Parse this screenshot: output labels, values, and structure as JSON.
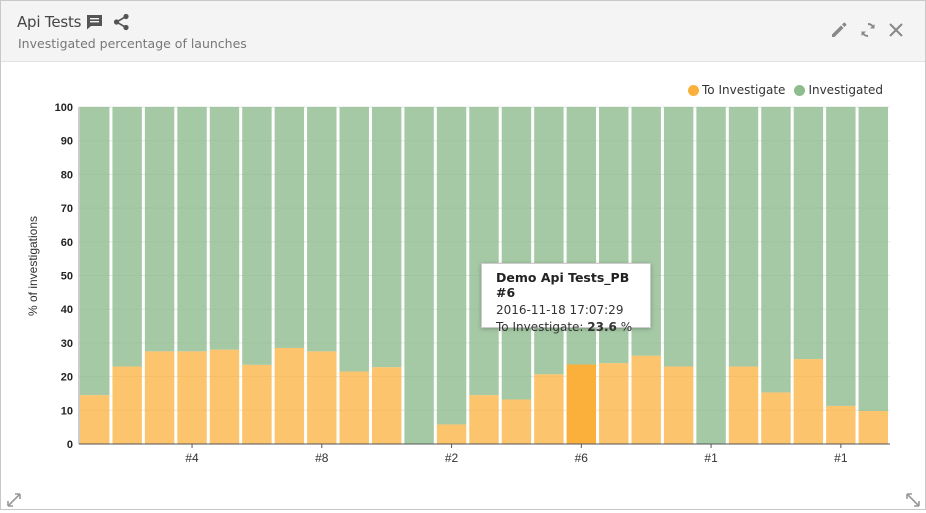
{
  "widget": {
    "title": "Api Tests",
    "subtitle": "Investigated percentage of launches",
    "icons": [
      "comment-icon",
      "share-icon",
      "edit-icon",
      "refresh-icon",
      "close-icon",
      "expand-icon",
      "resize-icon"
    ]
  },
  "legend": {
    "items": [
      {
        "label": "To Investigate",
        "color": "#fbb03b"
      },
      {
        "label": "Investigated",
        "color": "#8fbc8f"
      }
    ],
    "placement": "top-right"
  },
  "tooltip": {
    "title": "Demo Api Tests_PB #6",
    "date": "2016-11-18 17:07:29",
    "label": "To Investigate:",
    "value": "23.6",
    "unit": "%"
  },
  "chart_data": {
    "type": "bar",
    "stacked": true,
    "ylabel": "% of investigations",
    "xlabel": "",
    "ylim": [
      0,
      100
    ],
    "yticks": [
      0,
      10,
      20,
      30,
      40,
      50,
      60,
      70,
      80,
      90,
      100
    ],
    "x_tick_labels": [
      "#4",
      "#8",
      "#2",
      "#6",
      "#1",
      "#1"
    ],
    "grid": true,
    "highlighted_bar": 15,
    "series": [
      {
        "name": "To Investigate",
        "color": "#fbb03b",
        "values": [
          14.5,
          23,
          27.5,
          27.5,
          28,
          23.5,
          28.5,
          27.5,
          21.5,
          22.8,
          0,
          5.8,
          14.5,
          13.2,
          20.7,
          23.6,
          24,
          26.2,
          23,
          0,
          23,
          15.3,
          25.2,
          11.3,
          9.8
        ]
      },
      {
        "name": "Investigated",
        "color": "#8fbc8f",
        "values": [
          85.5,
          77,
          72.5,
          72.5,
          72,
          76.5,
          71.5,
          72.5,
          78.5,
          77.2,
          100,
          94.2,
          85.5,
          86.8,
          79.3,
          76.4,
          76,
          73.8,
          77,
          100,
          77,
          84.7,
          74.8,
          88.7,
          90.2
        ]
      }
    ]
  }
}
